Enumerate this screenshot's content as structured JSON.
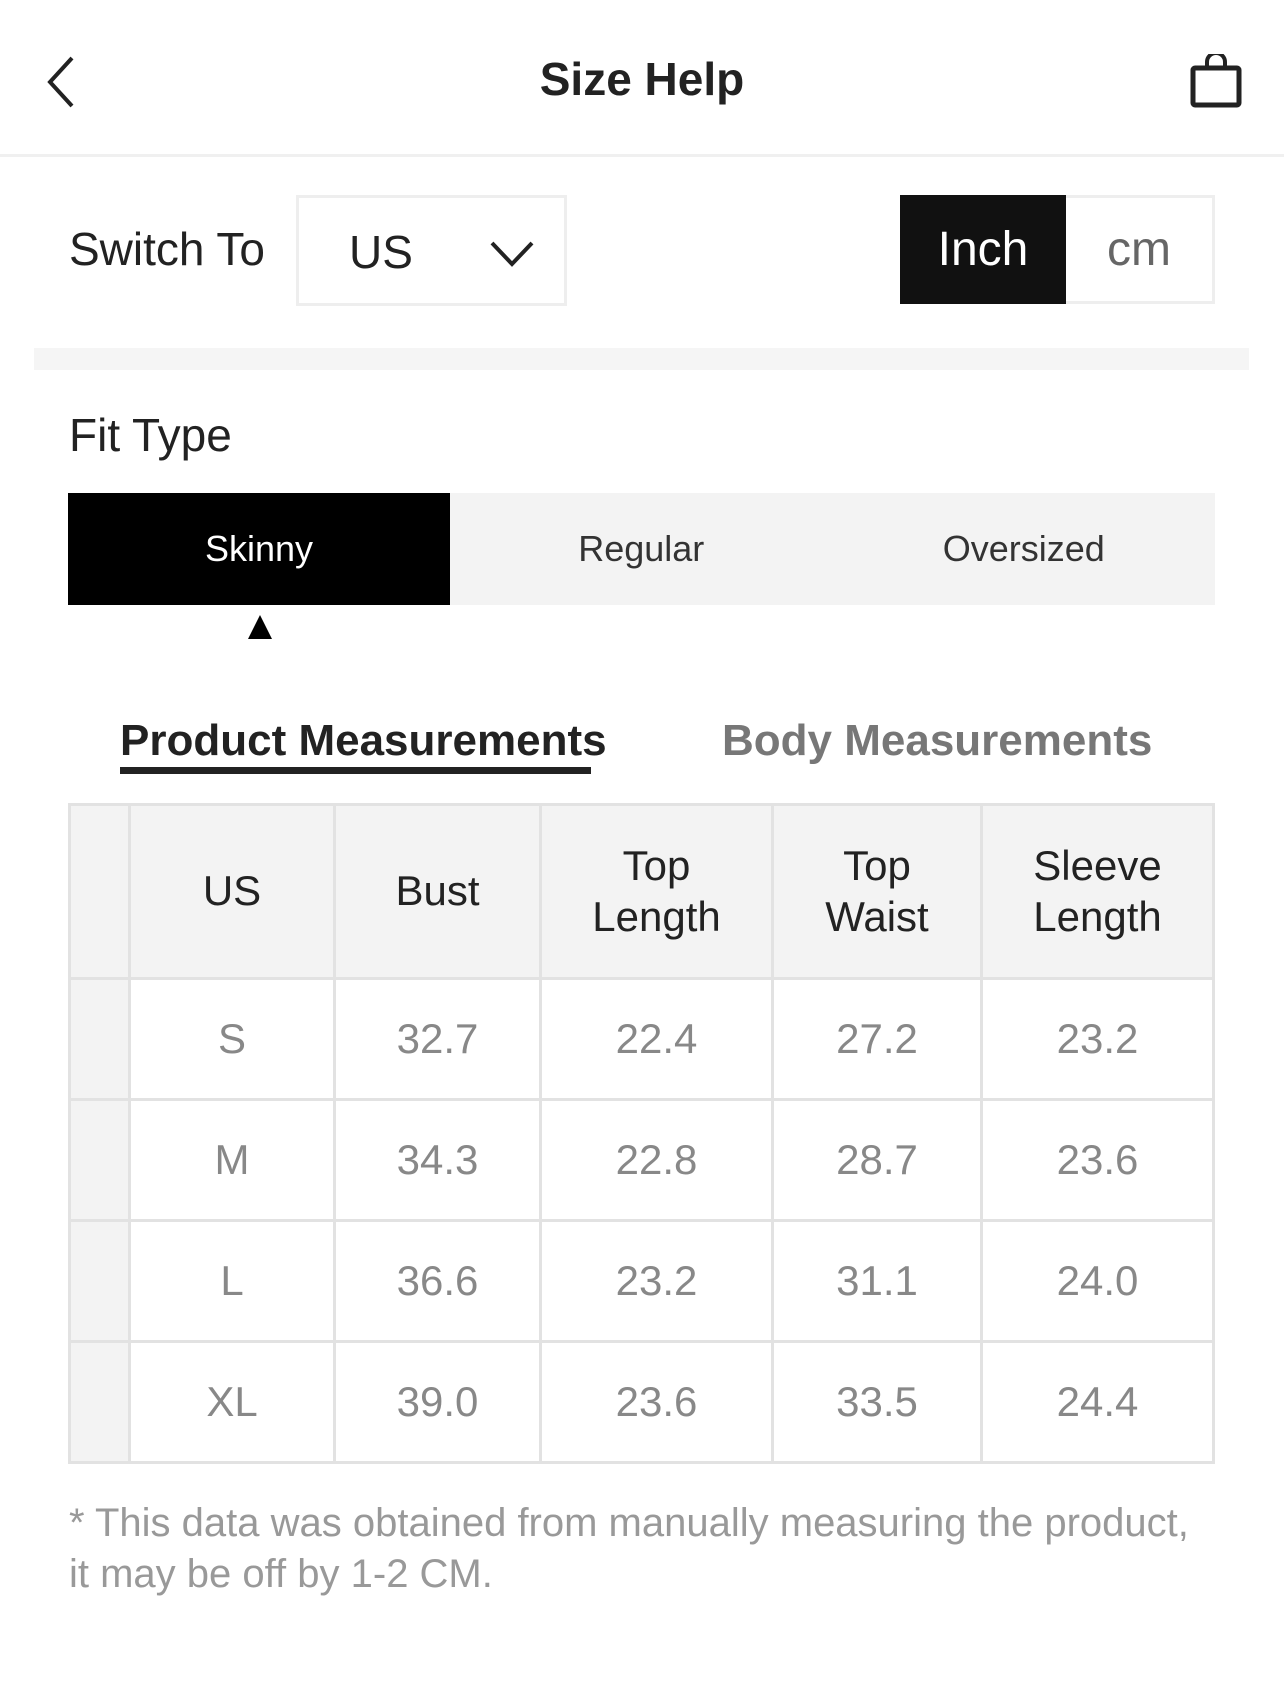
{
  "header": {
    "title": "Size Help",
    "back_icon": "chevron-left-icon",
    "bag_icon": "shopping-bag-icon"
  },
  "switch": {
    "label": "Switch To",
    "value": "US"
  },
  "units": {
    "options": [
      "Inch",
      "cm"
    ],
    "selected": "Inch"
  },
  "fit": {
    "label": "Fit Type",
    "options": [
      "Skinny",
      "Regular",
      "Oversized"
    ],
    "selected": "Skinny"
  },
  "tabs": {
    "product": "Product Measurements",
    "body": "Body Measurements",
    "active": "product"
  },
  "table": {
    "headers": [
      "US",
      "Bust",
      "Top\nLength",
      "Top\nWaist",
      "Sleeve\nLength"
    ],
    "rows": [
      [
        "S",
        "32.7",
        "22.4",
        "27.2",
        "23.2"
      ],
      [
        "M",
        "34.3",
        "22.8",
        "28.7",
        "23.6"
      ],
      [
        "L",
        "36.6",
        "23.2",
        "31.1",
        "24.0"
      ],
      [
        "XL",
        "39.0",
        "23.6",
        "33.5",
        "24.4"
      ]
    ]
  },
  "note": "* This data was obtained from manually measuring the product, it may be off by 1-2 CM."
}
